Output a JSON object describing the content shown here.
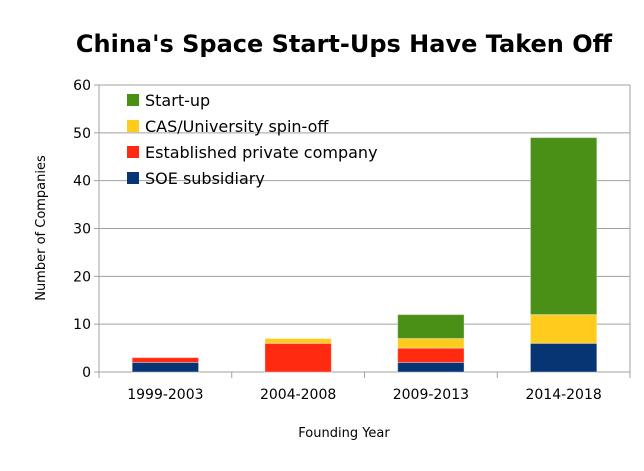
{
  "chart_data": {
    "type": "bar",
    "stacked": true,
    "title": "China's Space Start-Ups Have Taken Off",
    "xlabel": "Founding Year",
    "ylabel": "Number of Companies",
    "ylim": [
      0,
      60
    ],
    "yticks": [
      0,
      10,
      20,
      30,
      40,
      50,
      60
    ],
    "grid": true,
    "legend_position": "top-left",
    "categories": [
      "1999-2003",
      "2004-2008",
      "2009-2013",
      "2014-2018"
    ],
    "series": [
      {
        "name": "SOE subsidiary",
        "color": "#073574",
        "values": [
          2,
          0,
          2,
          6
        ]
      },
      {
        "name": "Established private company",
        "color": "#ff2a10",
        "values": [
          1,
          6,
          3,
          0
        ]
      },
      {
        "name": "CAS/University spin-off",
        "color": "#ffcc1e",
        "values": [
          0,
          1,
          2,
          6
        ]
      },
      {
        "name": "Start-up",
        "color": "#4a8f16",
        "values": [
          0,
          0,
          5,
          37
        ]
      }
    ]
  }
}
